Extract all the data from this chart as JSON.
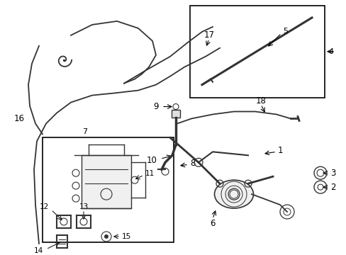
{
  "title": "",
  "bg_color": "#ffffff",
  "line_color": "#333333",
  "box_color": "#000000",
  "label_color": "#000000",
  "fig_width": 4.89,
  "fig_height": 3.6,
  "dpi": 100
}
